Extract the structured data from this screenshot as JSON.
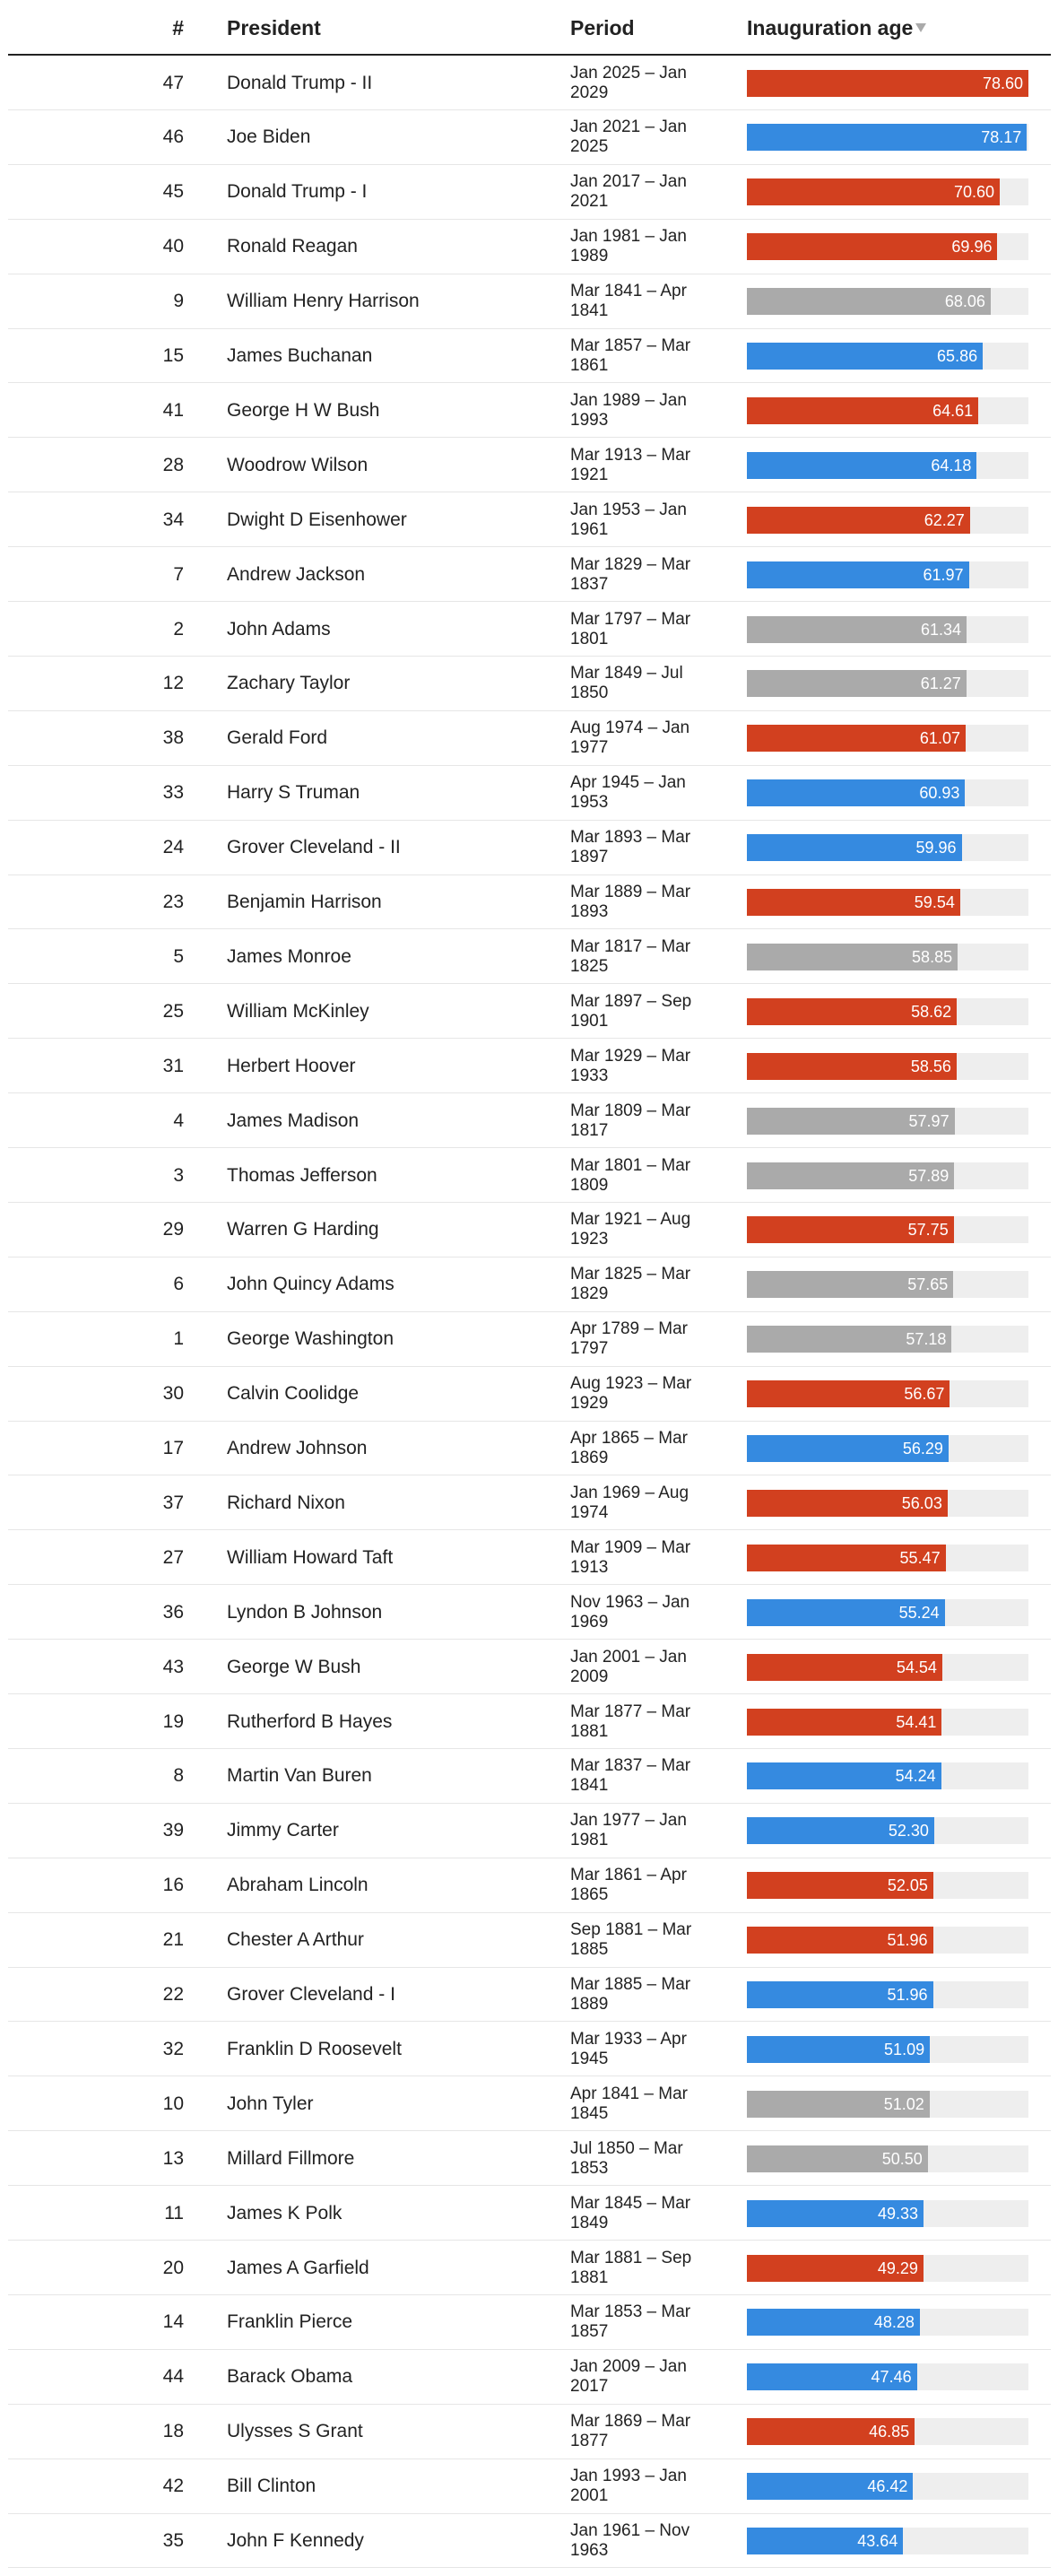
{
  "table": {
    "columns": [
      "#",
      "President",
      "Period",
      "Inauguration age"
    ],
    "rows": [
      [
        47,
        "Donald Trump - II",
        "Jan 2025 – Jan 2029",
        78.6,
        "78.60",
        "#d2401f"
      ],
      [
        46,
        "Joe Biden",
        "Jan 2021 – Jan 2025",
        78.17,
        "78.17",
        "#358ae0"
      ],
      [
        45,
        "Donald Trump - I",
        "Jan 2017 – Jan 2021",
        70.6,
        "70.60",
        "#d2401f"
      ],
      [
        40,
        "Ronald Reagan",
        "Jan 1981 – Jan 1989",
        69.96,
        "69.96",
        "#d2401f"
      ],
      [
        9,
        "William Henry Harrison",
        "Mar 1841 – Apr 1841",
        68.06,
        "68.06",
        "#aaaaaa"
      ],
      [
        15,
        "James Buchanan",
        "Mar 1857 – Mar 1861",
        65.86,
        "65.86",
        "#358ae0"
      ],
      [
        41,
        "George H W Bush",
        "Jan 1989 – Jan 1993",
        64.61,
        "64.61",
        "#d2401f"
      ],
      [
        28,
        "Woodrow Wilson",
        "Mar 1913 – Mar 1921",
        64.18,
        "64.18",
        "#358ae0"
      ],
      [
        34,
        "Dwight D Eisenhower",
        "Jan 1953 – Jan 1961",
        62.27,
        "62.27",
        "#d2401f"
      ],
      [
        7,
        "Andrew Jackson",
        "Mar 1829 – Mar 1837",
        61.97,
        "61.97",
        "#358ae0"
      ],
      [
        2,
        "John Adams",
        "Mar 1797 – Mar 1801",
        61.34,
        "61.34",
        "#aaaaaa"
      ],
      [
        12,
        "Zachary Taylor",
        "Mar 1849 – Jul 1850",
        61.27,
        "61.27",
        "#aaaaaa"
      ],
      [
        38,
        "Gerald Ford",
        "Aug 1974 – Jan 1977",
        61.07,
        "61.07",
        "#d2401f"
      ],
      [
        33,
        "Harry S Truman",
        "Apr 1945 – Jan 1953",
        60.93,
        "60.93",
        "#358ae0"
      ],
      [
        24,
        "Grover Cleveland - II",
        "Mar 1893 – Mar 1897",
        59.96,
        "59.96",
        "#358ae0"
      ],
      [
        23,
        "Benjamin Harrison",
        "Mar 1889 – Mar 1893",
        59.54,
        "59.54",
        "#d2401f"
      ],
      [
        5,
        "James Monroe",
        "Mar 1817 – Mar 1825",
        58.85,
        "58.85",
        "#aaaaaa"
      ],
      [
        25,
        "William McKinley",
        "Mar 1897 – Sep 1901",
        58.62,
        "58.62",
        "#d2401f"
      ],
      [
        31,
        "Herbert Hoover",
        "Mar 1929 – Mar 1933",
        58.56,
        "58.56",
        "#d2401f"
      ],
      [
        4,
        "James Madison",
        "Mar 1809 – Mar 1817",
        57.97,
        "57.97",
        "#aaaaaa"
      ],
      [
        3,
        "Thomas Jefferson",
        "Mar 1801 – Mar 1809",
        57.89,
        "57.89",
        "#aaaaaa"
      ],
      [
        29,
        "Warren G Harding",
        "Mar 1921 – Aug 1923",
        57.75,
        "57.75",
        "#d2401f"
      ],
      [
        6,
        "John Quincy Adams",
        "Mar 1825 – Mar 1829",
        57.65,
        "57.65",
        "#aaaaaa"
      ],
      [
        1,
        "George Washington",
        "Apr 1789 – Mar 1797",
        57.18,
        "57.18",
        "#aaaaaa"
      ],
      [
        30,
        "Calvin Coolidge",
        "Aug 1923 – Mar 1929",
        56.67,
        "56.67",
        "#d2401f"
      ],
      [
        17,
        "Andrew Johnson",
        "Apr 1865 – Mar 1869",
        56.29,
        "56.29",
        "#358ae0"
      ],
      [
        37,
        "Richard Nixon",
        "Jan 1969 – Aug 1974",
        56.03,
        "56.03",
        "#d2401f"
      ],
      [
        27,
        "William Howard Taft",
        "Mar 1909 – Mar 1913",
        55.47,
        "55.47",
        "#d2401f"
      ],
      [
        36,
        "Lyndon B Johnson",
        "Nov 1963 – Jan 1969",
        55.24,
        "55.24",
        "#358ae0"
      ],
      [
        43,
        "George W Bush",
        "Jan 2001 – Jan 2009",
        54.54,
        "54.54",
        "#d2401f"
      ],
      [
        19,
        "Rutherford B Hayes",
        "Mar 1877 – Mar 1881",
        54.41,
        "54.41",
        "#d2401f"
      ],
      [
        8,
        "Martin Van Buren",
        "Mar 1837 – Mar 1841",
        54.24,
        "54.24",
        "#358ae0"
      ],
      [
        39,
        "Jimmy Carter",
        "Jan 1977 – Jan 1981",
        52.3,
        "52.30",
        "#358ae0"
      ],
      [
        16,
        "Abraham Lincoln",
        "Mar 1861 – Apr 1865",
        52.05,
        "52.05",
        "#d2401f"
      ],
      [
        21,
        "Chester A Arthur",
        "Sep 1881 – Mar 1885",
        51.96,
        "51.96",
        "#d2401f"
      ],
      [
        22,
        "Grover Cleveland - I",
        "Mar 1885 – Mar 1889",
        51.96,
        "51.96",
        "#358ae0"
      ],
      [
        32,
        "Franklin D Roosevelt",
        "Mar 1933 – Apr 1945",
        51.09,
        "51.09",
        "#358ae0"
      ],
      [
        10,
        "John Tyler",
        "Apr 1841 – Mar 1845",
        51.02,
        "51.02",
        "#aaaaaa"
      ],
      [
        13,
        "Millard Fillmore",
        "Jul 1850 – Mar 1853",
        50.5,
        "50.50",
        "#aaaaaa"
      ],
      [
        11,
        "James K Polk",
        "Mar 1845 – Mar 1849",
        49.33,
        "49.33",
        "#358ae0"
      ],
      [
        20,
        "James A Garfield",
        "Mar 1881 – Sep 1881",
        49.29,
        "49.29",
        "#d2401f"
      ],
      [
        14,
        "Franklin Pierce",
        "Mar 1853 – Mar 1857",
        48.28,
        "48.28",
        "#358ae0"
      ],
      [
        44,
        "Barack Obama",
        "Jan 2009 – Jan 2017",
        47.46,
        "47.46",
        "#358ae0"
      ],
      [
        18,
        "Ulysses S Grant",
        "Mar 1869 – Mar 1877",
        46.85,
        "46.85",
        "#d2401f"
      ],
      [
        42,
        "Bill Clinton",
        "Jan 1993 – Jan 2001",
        46.42,
        "46.42",
        "#358ae0"
      ],
      [
        35,
        "John F Kennedy",
        "Jan 1961 – Nov 1963",
        43.64,
        "43.64",
        "#358ae0"
      ]
    ]
  }
}
